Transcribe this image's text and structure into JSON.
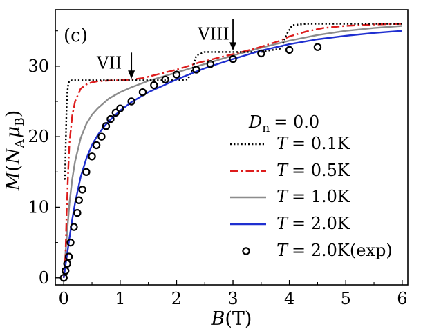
{
  "chart_data": {
    "type": "line",
    "panel_label": "(c)",
    "xlabel": "B(T)",
    "ylabel": "M(N_A μ_B)",
    "xlim": [
      -0.15,
      6.1
    ],
    "ylim": [
      -1,
      38
    ],
    "xticks": [
      0,
      1,
      2,
      3,
      4,
      5,
      6
    ],
    "yticks": [
      0,
      10,
      20,
      30
    ],
    "grid": false,
    "legend_title": "D_n = 0.0",
    "legend_position": "right",
    "annotations": [
      {
        "text": "VII",
        "x": 1.2,
        "y": 28
      },
      {
        "text": "VIII",
        "x": 3.0,
        "y": 32
      }
    ],
    "series": [
      {
        "name": "T = 0.1K",
        "label_var": "T",
        "label_val": "0.1K",
        "color": "#000000",
        "style": "dotted",
        "x": [
          0.01,
          0.02,
          0.035,
          0.05,
          0.06,
          0.08,
          0.1,
          0.15,
          0.2,
          0.4,
          0.8,
          1.2,
          1.4,
          1.6,
          2.0,
          2.2,
          2.28,
          2.35,
          2.5,
          3.0,
          3.5,
          3.85,
          3.95,
          4.05,
          4.3,
          5.0,
          5.5,
          6.0
        ],
        "y": [
          14,
          14,
          19,
          24,
          26,
          27.5,
          27.9,
          28,
          28,
          28,
          28,
          28,
          28,
          28,
          28,
          28.1,
          29.5,
          31.5,
          32,
          32,
          32,
          32.5,
          34.5,
          35.8,
          36,
          36,
          36,
          36
        ]
      },
      {
        "name": "T = 0.5K",
        "label_var": "T",
        "label_val": "0.5K",
        "color": "#dd1c1c",
        "style": "dashdot",
        "x": [
          0,
          0.03,
          0.05,
          0.08,
          0.1,
          0.15,
          0.2,
          0.3,
          0.4,
          0.5,
          0.6,
          0.8,
          1.0,
          1.2,
          1.4,
          1.6,
          2.0,
          2.4,
          2.8,
          3.0,
          3.4,
          3.8,
          4.0,
          4.3,
          4.6,
          5.0,
          5.5,
          6.0
        ],
        "y": [
          0,
          3,
          9,
          15.5,
          19,
          23,
          25,
          26.8,
          27.4,
          27.7,
          27.85,
          27.95,
          28,
          28.1,
          28.3,
          28.7,
          29.5,
          30.5,
          31.3,
          31.7,
          32.5,
          33.5,
          34.2,
          34.9,
          35.4,
          35.7,
          35.9,
          36
        ]
      },
      {
        "name": "T = 1.0K",
        "label_var": "T",
        "label_val": "1.0K",
        "color": "#8c8c8c",
        "style": "solid",
        "x": [
          0,
          0.05,
          0.1,
          0.15,
          0.2,
          0.3,
          0.4,
          0.5,
          0.6,
          0.8,
          1.0,
          1.2,
          1.5,
          2.0,
          2.5,
          3.0,
          3.5,
          4.0,
          4.5,
          5.0,
          5.5,
          6.0
        ],
        "y": [
          0,
          5.5,
          10.5,
          14,
          16.5,
          19.8,
          21.8,
          23.1,
          24,
          25.4,
          26.3,
          27,
          27.9,
          29.1,
          30.3,
          31.5,
          32.6,
          33.6,
          34.4,
          35,
          35.4,
          35.7
        ]
      },
      {
        "name": "T = 2.0K",
        "label_var": "T",
        "label_val": "2.0K",
        "color": "#1f2fd0",
        "style": "solid",
        "x": [
          0,
          0.05,
          0.1,
          0.15,
          0.2,
          0.3,
          0.4,
          0.5,
          0.6,
          0.7,
          0.8,
          1.0,
          1.2,
          1.5,
          2.0,
          2.5,
          3.0,
          3.5,
          4.0,
          4.5,
          5.0,
          5.5,
          6.0
        ],
        "y": [
          0,
          2.8,
          5.6,
          8.3,
          10.6,
          14.3,
          16.9,
          18.8,
          20.2,
          21.3,
          22.2,
          23.7,
          24.9,
          26.3,
          28.1,
          29.7,
          31,
          32.2,
          33.1,
          33.8,
          34.3,
          34.7,
          35
        ]
      },
      {
        "name": "T = 2.0K(exp)",
        "label_var": "T",
        "label_val": "2.0K(exp)",
        "color": "#000000",
        "style": "markers",
        "x": [
          0.0,
          0.03,
          0.06,
          0.09,
          0.12,
          0.18,
          0.24,
          0.27,
          0.33,
          0.4,
          0.5,
          0.58,
          0.67,
          0.75,
          0.83,
          0.92,
          1.0,
          1.2,
          1.4,
          1.6,
          1.8,
          2.0,
          2.35,
          2.6,
          3.0,
          3.5,
          4.0,
          4.5
        ],
        "y": [
          0,
          1,
          2,
          3,
          5,
          7.2,
          9.2,
          11,
          12.5,
          15,
          17.2,
          18.8,
          20,
          21.5,
          22.5,
          23.4,
          24,
          25,
          26.3,
          27.3,
          28.1,
          28.8,
          29.5,
          30.3,
          31,
          31.8,
          32.3,
          32.7
        ]
      }
    ]
  }
}
